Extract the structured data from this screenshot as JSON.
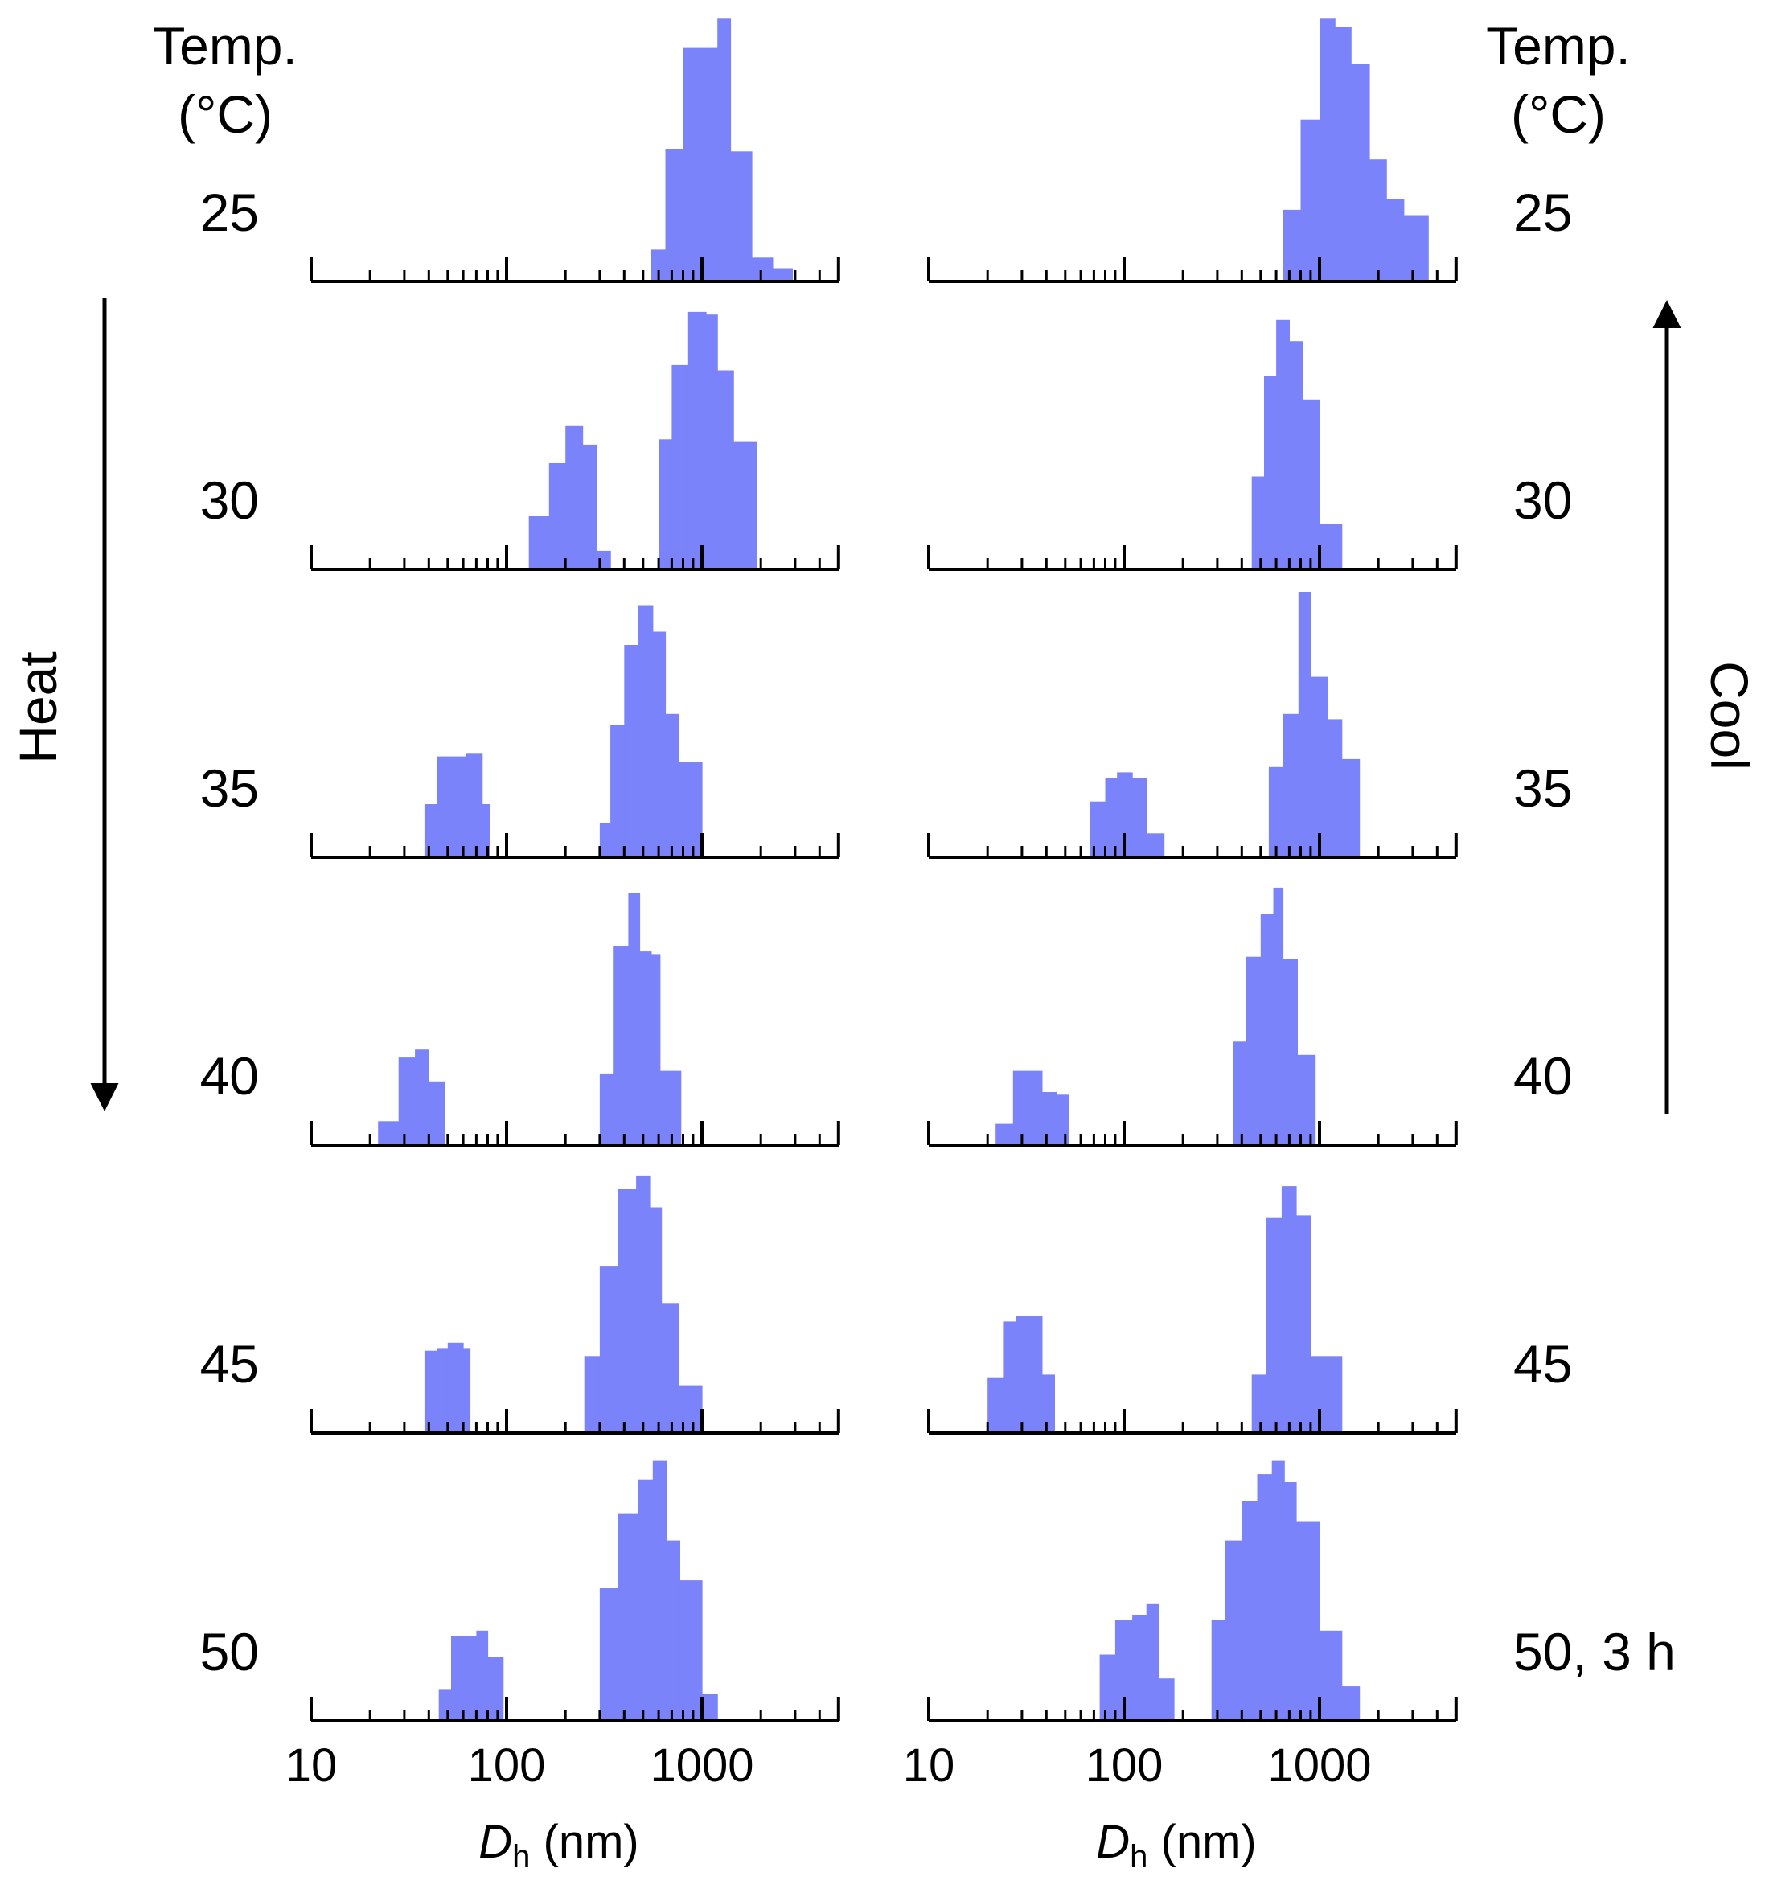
{
  "left_header": {
    "line1": "Temp.",
    "line2": "(°C)"
  },
  "right_header": {
    "line1": "Temp.",
    "line2": "(°C)"
  },
  "left_arrow_label": "Heat",
  "right_arrow_label": "Cool",
  "left_row_labels": [
    "25",
    "30",
    "35",
    "40",
    "45",
    "50"
  ],
  "right_row_labels": [
    "25",
    "30",
    "35",
    "40",
    "45",
    "50, 3 h"
  ],
  "x_axis": {
    "tick_labels": [
      "10",
      "100",
      "1000"
    ],
    "xlabel_symbol": "D",
    "xlabel_sub": "h",
    "xlabel_unit": " (nm)"
  },
  "colors": {
    "bar": "#7b83fb",
    "axis": "#000000"
  },
  "chart_data": {
    "type": "bar",
    "subtype": "histogram",
    "x_scale": "log",
    "xlim": [
      10,
      5000
    ],
    "x_ticks": [
      10,
      100,
      1000
    ],
    "xlabel": "Dh (nm)",
    "ylabel": "",
    "y_axis_shown": false,
    "grid": false,
    "panels": [
      {
        "column": "heat",
        "temp": "25",
        "bins": [
          [
            550,
            650,
            0.12
          ],
          [
            650,
            800,
            0.5
          ],
          [
            800,
            1000,
            0.88
          ],
          [
            1000,
            1200,
            0.88
          ],
          [
            1200,
            1400,
            0.99
          ],
          [
            1400,
            1800,
            0.49
          ],
          [
            1800,
            2300,
            0.09
          ],
          [
            2300,
            2900,
            0.05
          ]
        ]
      },
      {
        "column": "heat",
        "temp": "30",
        "bins": [
          [
            130,
            165,
            0.2
          ],
          [
            165,
            200,
            0.4
          ],
          [
            200,
            245,
            0.54
          ],
          [
            245,
            290,
            0.47
          ],
          [
            290,
            340,
            0.07
          ],
          [
            600,
            700,
            0.49
          ],
          [
            700,
            850,
            0.77
          ],
          [
            850,
            1050,
            0.97
          ],
          [
            1050,
            1200,
            0.96
          ],
          [
            1200,
            1450,
            0.75
          ],
          [
            1450,
            1900,
            0.48
          ]
        ]
      },
      {
        "column": "heat",
        "temp": "35",
        "bins": [
          [
            38,
            44,
            0.2
          ],
          [
            44,
            52,
            0.38
          ],
          [
            52,
            62,
            0.38
          ],
          [
            62,
            75,
            0.39
          ],
          [
            75,
            82,
            0.2
          ],
          [
            300,
            340,
            0.13
          ],
          [
            340,
            400,
            0.5
          ],
          [
            400,
            470,
            0.8
          ],
          [
            470,
            560,
            0.95
          ],
          [
            560,
            650,
            0.85
          ],
          [
            650,
            760,
            0.54
          ],
          [
            760,
            1000,
            0.36
          ]
        ]
      },
      {
        "column": "heat",
        "temp": "40",
        "bins": [
          [
            22,
            28,
            0.09
          ],
          [
            28,
            34,
            0.33
          ],
          [
            34,
            40,
            0.36
          ],
          [
            40,
            48,
            0.24
          ],
          [
            300,
            350,
            0.27
          ],
          [
            350,
            420,
            0.75
          ],
          [
            420,
            480,
            0.95
          ],
          [
            480,
            550,
            0.73
          ],
          [
            550,
            610,
            0.72
          ],
          [
            610,
            780,
            0.28
          ]
        ]
      },
      {
        "column": "heat",
        "temp": "45",
        "bins": [
          [
            38,
            44,
            0.31
          ],
          [
            44,
            50,
            0.32
          ],
          [
            50,
            60,
            0.34
          ],
          [
            60,
            65,
            0.32
          ],
          [
            250,
            300,
            0.29
          ],
          [
            300,
            370,
            0.63
          ],
          [
            370,
            460,
            0.92
          ],
          [
            460,
            540,
            0.97
          ],
          [
            540,
            620,
            0.85
          ],
          [
            620,
            760,
            0.49
          ],
          [
            760,
            1000,
            0.18
          ]
        ]
      },
      {
        "column": "heat",
        "temp": "50",
        "bins": [
          [
            45,
            52,
            0.12
          ],
          [
            52,
            60,
            0.32
          ],
          [
            60,
            70,
            0.32
          ],
          [
            70,
            80,
            0.34
          ],
          [
            80,
            96,
            0.24
          ],
          [
            300,
            370,
            0.5
          ],
          [
            370,
            470,
            0.78
          ],
          [
            470,
            560,
            0.91
          ],
          [
            560,
            660,
            0.98
          ],
          [
            660,
            770,
            0.68
          ],
          [
            770,
            1000,
            0.53
          ],
          [
            1000,
            1200,
            0.1
          ]
        ]
      },
      {
        "column": "cool",
        "temp": "25",
        "bins": [
          [
            650,
            800,
            0.27
          ],
          [
            800,
            1000,
            0.61
          ],
          [
            1000,
            1200,
            0.99
          ],
          [
            1200,
            1450,
            0.96
          ],
          [
            1450,
            1800,
            0.82
          ],
          [
            1800,
            2200,
            0.46
          ],
          [
            2200,
            2700,
            0.31
          ],
          [
            2700,
            3600,
            0.25
          ]
        ]
      },
      {
        "column": "cool",
        "temp": "30",
        "bins": [
          [
            450,
            520,
            0.35
          ],
          [
            520,
            600,
            0.73
          ],
          [
            600,
            700,
            0.94
          ],
          [
            700,
            820,
            0.86
          ],
          [
            820,
            1000,
            0.64
          ],
          [
            1000,
            1300,
            0.17
          ]
        ]
      },
      {
        "column": "cool",
        "temp": "35",
        "bins": [
          [
            67,
            80,
            0.21
          ],
          [
            80,
            92,
            0.3
          ],
          [
            92,
            110,
            0.32
          ],
          [
            110,
            130,
            0.3
          ],
          [
            130,
            160,
            0.09
          ],
          [
            550,
            650,
            0.34
          ],
          [
            650,
            780,
            0.54
          ],
          [
            780,
            900,
            1.0
          ],
          [
            900,
            1100,
            0.68
          ],
          [
            1100,
            1300,
            0.52
          ],
          [
            1300,
            1600,
            0.37
          ]
        ]
      },
      {
        "column": "cool",
        "temp": "40",
        "bins": [
          [
            22,
            27,
            0.08
          ],
          [
            27,
            33,
            0.28
          ],
          [
            33,
            38,
            0.28
          ],
          [
            38,
            45,
            0.2
          ],
          [
            45,
            52,
            0.19
          ],
          [
            360,
            420,
            0.39
          ],
          [
            420,
            500,
            0.71
          ],
          [
            500,
            580,
            0.87
          ],
          [
            580,
            650,
            0.97
          ],
          [
            650,
            770,
            0.7
          ],
          [
            770,
            950,
            0.34
          ]
        ]
      },
      {
        "column": "cool",
        "temp": "45",
        "bins": [
          [
            20,
            24,
            0.21
          ],
          [
            24,
            28,
            0.42
          ],
          [
            28,
            33,
            0.44
          ],
          [
            33,
            38,
            0.44
          ],
          [
            38,
            44,
            0.22
          ],
          [
            450,
            530,
            0.22
          ],
          [
            530,
            640,
            0.81
          ],
          [
            640,
            760,
            0.93
          ],
          [
            760,
            900,
            0.82
          ],
          [
            900,
            1300,
            0.29
          ]
        ]
      },
      {
        "column": "cool",
        "temp": "50, 3 h",
        "bins": [
          [
            75,
            90,
            0.25
          ],
          [
            90,
            110,
            0.38
          ],
          [
            110,
            130,
            0.4
          ],
          [
            130,
            150,
            0.44
          ],
          [
            150,
            180,
            0.16
          ],
          [
            280,
            330,
            0.38
          ],
          [
            330,
            400,
            0.68
          ],
          [
            400,
            480,
            0.83
          ],
          [
            480,
            570,
            0.93
          ],
          [
            570,
            660,
            0.98
          ],
          [
            660,
            760,
            0.9
          ],
          [
            760,
            1000,
            0.75
          ],
          [
            1000,
            1300,
            0.34
          ],
          [
            1300,
            1600,
            0.13
          ]
        ]
      }
    ]
  }
}
